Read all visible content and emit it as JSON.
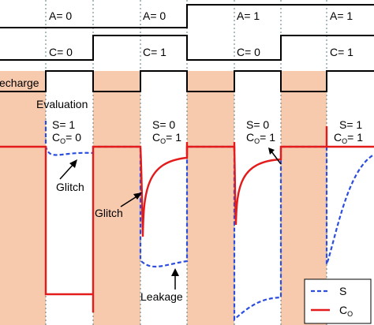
{
  "colors": {
    "precharge_band": "#f7c9ad",
    "signal_s": "#2b4de0",
    "signal_co": "#e31b1b",
    "digital_trace": "#000000",
    "separator": "#5a7b84"
  },
  "row_labels": {
    "precharge": "echarge",
    "evaluation": "Evaluation"
  },
  "phases": [
    {
      "a_label": "A= 0",
      "c_label": "C= 0",
      "s_label": "S= 1",
      "co_label": "C",
      "co_sub": "O",
      "co_value": "= 0"
    },
    {
      "a_label": "A= 0",
      "c_label": "C= 1",
      "s_label": "S= 0",
      "co_label": "C",
      "co_sub": "O",
      "co_value": "= 1"
    },
    {
      "a_label": "A= 1",
      "c_label": "C= 0",
      "s_label": "S= 0",
      "co_label": "C",
      "co_sub": "O",
      "co_value": "= 1"
    },
    {
      "a_label": "A= 1",
      "c_label": "C= 1",
      "s_label": "S= 1",
      "co_label": "C",
      "co_sub": "O",
      "co_value": "= 1"
    }
  ],
  "annotations": {
    "glitch_s": "Glitch",
    "glitch_co": "Glitch",
    "leakage": "Leakage"
  },
  "legend": {
    "s_label": "S",
    "co_label": "C",
    "co_sub": "O"
  }
}
